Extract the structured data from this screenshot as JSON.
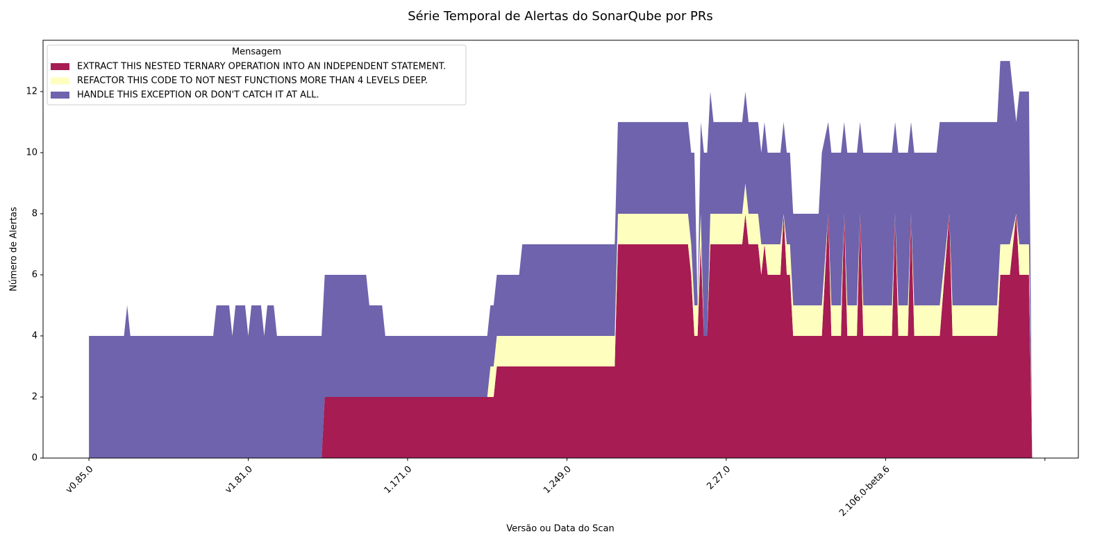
{
  "chart_data": {
    "type": "stackedarea",
    "title": "Série Temporal de Alertas do SonarQube por PRs",
    "x_label": "Versão ou Data do Scan",
    "y_label": "Número de Alertas",
    "legend_title": "Mensagem",
    "legend_loc": "upper left",
    "x": [
      0,
      11,
      12,
      13,
      39,
      40,
      44,
      45,
      46,
      49,
      50,
      51,
      54,
      55,
      56,
      58,
      59,
      73,
      74,
      87,
      88,
      92,
      93,
      125,
      126,
      127,
      128,
      135,
      136,
      165,
      166,
      188,
      189,
      190,
      191,
      192,
      193,
      194,
      195,
      196,
      205,
      206,
      207,
      210,
      211,
      212,
      213,
      217,
      218,
      219,
      220,
      221,
      229,
      230,
      232,
      233,
      236,
      237,
      238,
      241,
      242,
      243,
      252,
      253,
      254,
      257,
      258,
      259,
      266,
      267,
      270,
      271,
      285,
      286,
      289,
      291,
      292,
      295,
      296
    ],
    "series": [
      {
        "name": "EXTRACT THIS NESTED TERNARY OPERATION INTO AN INDEPENDENT STATEMENT.",
        "color": "#a61c53",
        "values": [
          0,
          0,
          0,
          0,
          0,
          0,
          0,
          0,
          0,
          0,
          0,
          0,
          0,
          0,
          0,
          0,
          0,
          0,
          2,
          2,
          2,
          2,
          2,
          2,
          2,
          2,
          3,
          3,
          3,
          3,
          7,
          7,
          6,
          4,
          4,
          7,
          4,
          4,
          7,
          7,
          7,
          8,
          7,
          7,
          6,
          7,
          6,
          6,
          8,
          6,
          6,
          4,
          4,
          4,
          8,
          4,
          4,
          8,
          4,
          4,
          8,
          4,
          4,
          8,
          4,
          4,
          8,
          4,
          4,
          4,
          8,
          4,
          4,
          6,
          6,
          8,
          6,
          6,
          0
        ]
      },
      {
        "name": "REFACTOR THIS CODE TO NOT NEST FUNCTIONS MORE THAN 4 LEVELS DEEP.",
        "color": "#fefebf",
        "values": [
          0,
          0,
          0,
          0,
          0,
          0,
          0,
          0,
          0,
          0,
          0,
          0,
          0,
          0,
          0,
          0,
          0,
          0,
          0,
          0,
          0,
          0,
          0,
          0,
          1,
          1,
          1,
          1,
          1,
          1,
          1,
          1,
          1,
          1,
          1,
          1,
          0,
          0,
          1,
          1,
          1,
          1,
          1,
          1,
          1,
          0,
          1,
          1,
          0,
          1,
          1,
          1,
          1,
          1,
          0,
          1,
          1,
          0,
          1,
          1,
          0,
          1,
          1,
          0,
          1,
          1,
          0,
          1,
          1,
          1,
          0,
          1,
          1,
          1,
          1,
          0,
          1,
          1,
          0
        ]
      },
      {
        "name": "HANDLE THIS EXCEPTION OR DON'T CATCH IT AT ALL.",
        "color": "#6e63ac",
        "values": [
          4,
          4,
          5,
          4,
          4,
          5,
          5,
          4,
          5,
          5,
          4,
          5,
          5,
          4,
          5,
          5,
          4,
          4,
          4,
          4,
          3,
          3,
          2,
          2,
          2,
          2,
          2,
          2,
          3,
          3,
          3,
          3,
          3,
          5,
          0,
          3,
          6,
          6,
          4,
          3,
          3,
          3,
          3,
          3,
          3,
          4,
          3,
          3,
          3,
          3,
          3,
          3,
          3,
          5,
          3,
          5,
          5,
          3,
          5,
          5,
          3,
          5,
          5,
          3,
          5,
          5,
          3,
          5,
          5,
          6,
          3,
          6,
          6,
          6,
          6,
          3,
          5,
          5,
          0
        ]
      }
    ],
    "xlim": [
      -14.4,
      310.5
    ],
    "xticks": [
      {
        "value": 0,
        "label": "v0.85.0"
      },
      {
        "value": 50,
        "label": "v1.81.0"
      },
      {
        "value": 100,
        "label": "1.171.0"
      },
      {
        "value": 150,
        "label": "1.249.0"
      },
      {
        "value": 200,
        "label": "2.27.0"
      },
      {
        "value": 250,
        "label": "2.106.0-beta.6"
      },
      {
        "value": 300,
        "label": null
      }
    ],
    "ylim": [
      0,
      13.68
    ],
    "yticks": [
      0,
      2,
      4,
      6,
      8,
      10,
      12
    ]
  }
}
